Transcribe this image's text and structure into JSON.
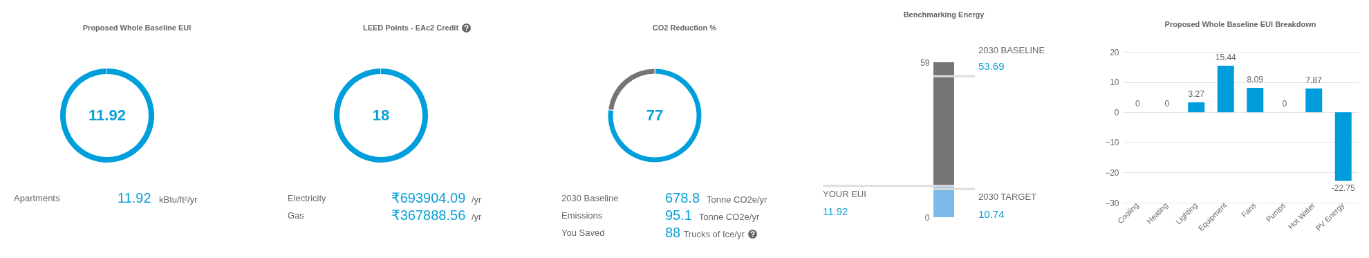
{
  "chart_data": [
    {
      "type": "pie",
      "title": "Proposed Whole Baseline EUI",
      "categories": [
        null
      ],
      "values": [
        11.92
      ],
      "colors": [
        "#009fdb"
      ],
      "value_labels": [
        "11.92"
      ],
      "annotations": [
        "Apartments",
        "11.92",
        "kBtu/ft²/yr"
      ]
    },
    {
      "type": "pie",
      "title": "LEED Points - EAc2 Credit",
      "categories": [
        null
      ],
      "values": [
        18
      ],
      "colors": [
        "#009fdb"
      ],
      "value_labels": [
        "18"
      ],
      "annotations": [
        "Electricity",
        "₹693904.09",
        "/yr",
        "Gas",
        "₹367888.56",
        "/yr"
      ]
    },
    {
      "type": "donut",
      "title": "CO2 Reduction %",
      "categories": [
        null,
        null
      ],
      "values": [
        77,
        23
      ],
      "colors": [
        "#009fdb",
        "#757575"
      ],
      "value_labels": [
        "77",
        null
      ],
      "annotations": [
        "2030 Baseline",
        "678.8",
        "Tonne CO2e/yr",
        "Emissions",
        "95.1",
        "Tonne CO2e/yr",
        "You Saved",
        "88",
        "Trucks of Ice/yr"
      ]
    },
    {
      "type": "bar",
      "title": "Benchmarking Energy",
      "stacked": true,
      "categories": [
        null
      ],
      "tick_labels": "y",
      "ylim": [
        0,
        59
      ],
      "yticks": [
        0,
        59
      ],
      "series": [
        {
          "color": "#7cbbe8",
          "values": [
            11.92
          ]
        },
        {
          "color": "#757575",
          "values": [
            47.08
          ]
        }
      ],
      "ref_lines": [
        {
          "axis": "y",
          "value": 53.69,
          "label": "2030 BASELINE"
        },
        {
          "axis": "y",
          "value": 10.74,
          "label": "2030 TARGET"
        },
        {
          "axis": "y",
          "value": 11.92,
          "label": "YOUR EUI"
        }
      ],
      "annotations": [
        "53.69",
        "10.74",
        {
          "text": "11.92",
          "y": 11.92
        }
      ]
    },
    {
      "type": "bar",
      "title": "Proposed Whole Baseline EUI Breakdown",
      "categories": [
        "Cooling",
        "Heating",
        "Lighting",
        "Equipment",
        "Fans",
        "Pumps",
        "Hot Water",
        "PV Energy"
      ],
      "values": [
        0,
        0,
        3.27,
        15.44,
        8.09,
        0,
        7.87,
        -22.75
      ],
      "color": "#009ddc",
      "ylim": [
        -30,
        20
      ],
      "yticks": [
        -30,
        -20,
        -10,
        0,
        10,
        20
      ],
      "grid": "y",
      "data_labels": true
    }
  ]
}
